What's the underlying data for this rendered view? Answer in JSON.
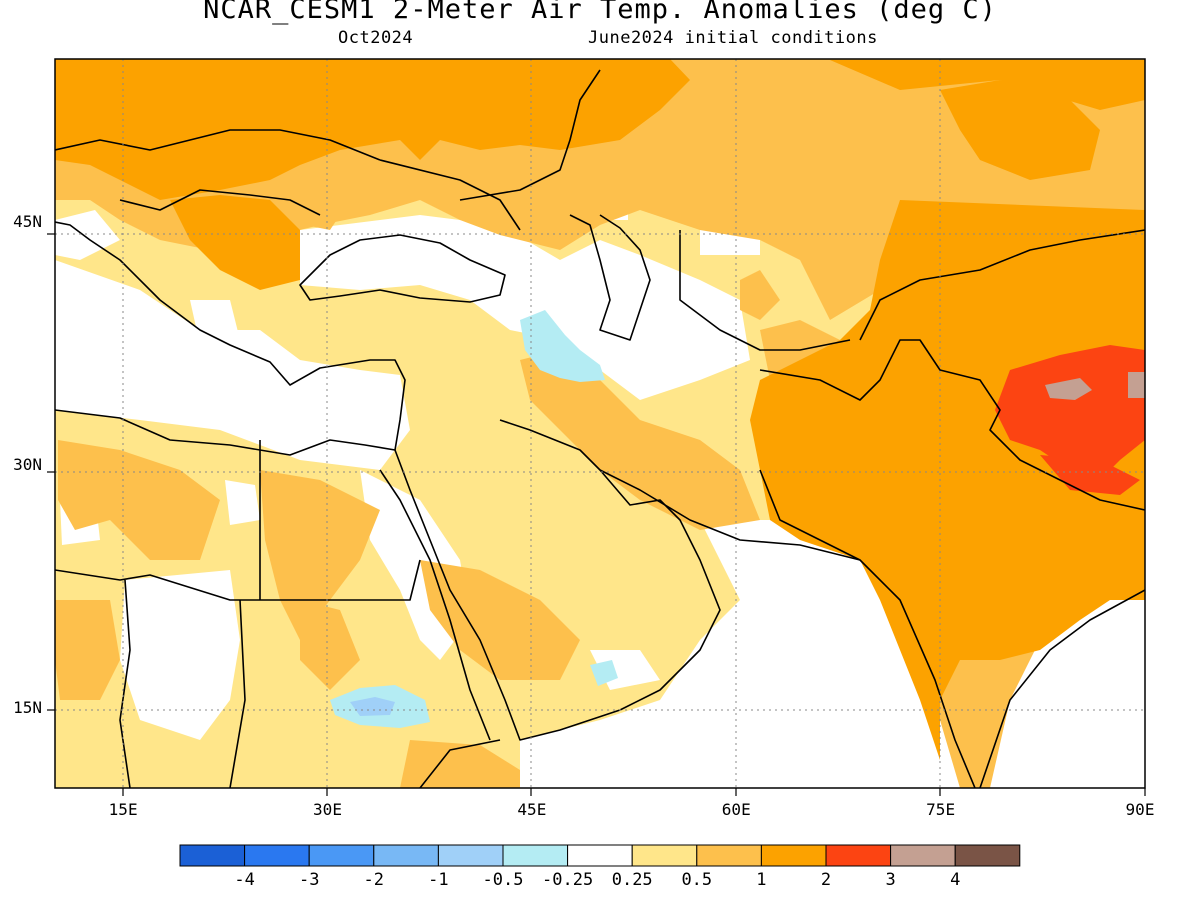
{
  "header": {
    "title": "NCAR_CESM1 2-Meter Air Temp. Anomalies (deg C)",
    "valid_month": "Oct2024",
    "init": "June2024 initial conditions"
  },
  "map": {
    "lon_range": [
      10,
      90
    ],
    "lat_range": [
      10,
      55
    ],
    "lon_ticks": [
      {
        "value": 15,
        "label": "15E"
      },
      {
        "value": 30,
        "label": "30E"
      },
      {
        "value": 45,
        "label": "45E"
      },
      {
        "value": 60,
        "label": "60E"
      },
      {
        "value": 75,
        "label": "75E"
      },
      {
        "value": 90,
        "label": "90E"
      }
    ],
    "lat_ticks": [
      {
        "value": 15,
        "label": "15N"
      },
      {
        "value": 30,
        "label": "30N"
      },
      {
        "value": 45,
        "label": "45N"
      }
    ],
    "grid": true
  },
  "colorbar": {
    "colors": [
      "#1b60d6",
      "#2a78f0",
      "#4a98f5",
      "#78b8f5",
      "#a0d0f8",
      "#b4ecf3",
      "#ffffff",
      "#ffe68a",
      "#fdc04c",
      "#fca200",
      "#fc4412",
      "#c4a092",
      "#7a5446"
    ],
    "labels": [
      "-4",
      "-3",
      "-2",
      "-1",
      "-0.5",
      "-0.25",
      "0.25",
      "0.5",
      "1",
      "2",
      "3",
      "4"
    ]
  },
  "anomaly_regions": [
    {
      "category": "1",
      "color": "#fdc04c",
      "location": "Europe and southern Russia"
    },
    {
      "category": "2",
      "color": "#fca200",
      "location": "Pakistan, northern India and Tibetan Plateau"
    },
    {
      "category": "3",
      "color": "#fc4412",
      "location": "western Tibet"
    },
    {
      "category": "4",
      "color": "#c4a092",
      "location": "western Tibet core"
    },
    {
      "category": "-0.5",
      "color": "#b4ecf3",
      "location": "northwestern Iran"
    },
    {
      "category": "-1",
      "color": "#a0d0f8",
      "location": "Sudan"
    },
    {
      "category": "0.25",
      "color": "#ffffff",
      "location": "Arabian Sea and eastern Mediterranean"
    }
  ]
}
